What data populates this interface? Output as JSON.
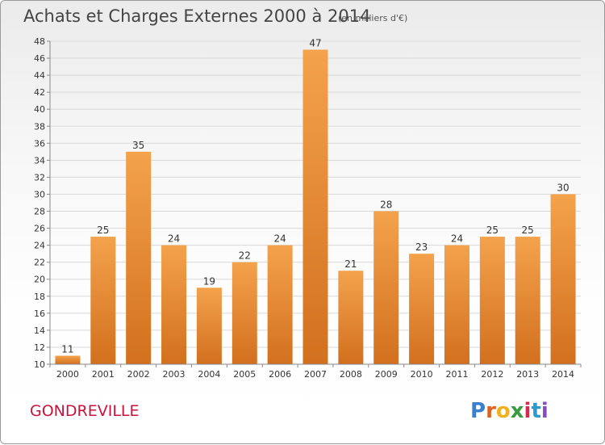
{
  "chart_data": {
    "type": "bar",
    "title": "Achats et Charges Externes 2000 à 2014",
    "subtitle": "(en milliers d'€)",
    "categories": [
      "2000",
      "2001",
      "2002",
      "2003",
      "2004",
      "2005",
      "2006",
      "2007",
      "2008",
      "2009",
      "2010",
      "2011",
      "2012",
      "2013",
      "2014"
    ],
    "values": [
      11,
      25,
      35,
      24,
      19,
      22,
      24,
      47,
      21,
      28,
      23,
      24,
      25,
      25,
      30
    ],
    "ylim": [
      10,
      48
    ],
    "yticks": [
      10,
      12,
      14,
      16,
      18,
      20,
      22,
      24,
      26,
      28,
      30,
      32,
      34,
      36,
      38,
      40,
      42,
      44,
      46,
      48
    ],
    "grid": true,
    "bar_color": "#f0902f",
    "xlabel": "",
    "ylabel": ""
  },
  "commune": "GONDREVILLE",
  "logo": {
    "text": "Proxiti",
    "letters": [
      "P",
      "r",
      "o",
      "x",
      "i",
      "t",
      "i"
    ],
    "colors": [
      "#3a7fd0",
      "#e06020",
      "#f0b020",
      "#3a9a40",
      "#d02a50",
      "#2a9ad0",
      "#8a4ac0"
    ]
  },
  "colors": {
    "accent": "#c8143c",
    "bar": "#f0902f",
    "bar_dark": "#d2701e"
  }
}
